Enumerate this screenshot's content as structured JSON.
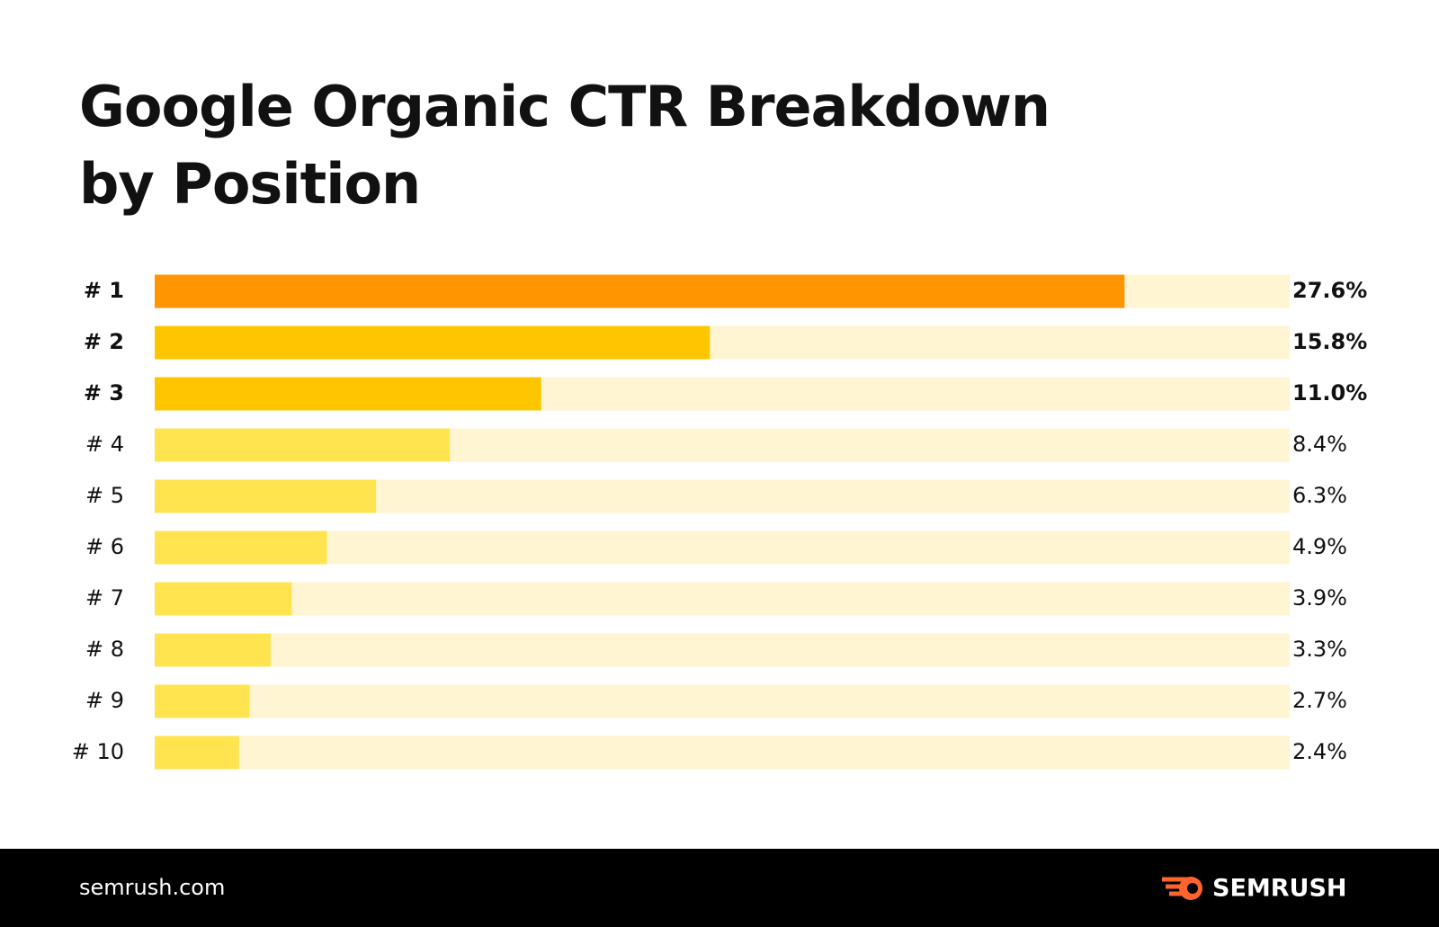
{
  "chart_data": {
    "type": "hbar",
    "title": [
      "Google Organic CTR Breakdown",
      "by Position"
    ],
    "categories": [
      "# 1",
      "# 2",
      "# 3",
      "# 4",
      "# 5",
      "# 6",
      "# 7",
      "# 8",
      "# 9",
      "# 10"
    ],
    "values": [
      27.6,
      15.8,
      11.0,
      8.4,
      6.3,
      4.9,
      3.9,
      3.3,
      2.7,
      2.4
    ],
    "value_labels": [
      "27.6%",
      "15.8%",
      "11.0%",
      "8.4%",
      "6.3%",
      "4.9%",
      "3.9%",
      "3.3%",
      "2.7%",
      "2.4%"
    ],
    "colors": [
      "#ff9500",
      "#ffc600",
      "#ffc600",
      "#ffe44f",
      "#ffe44f",
      "#ffe44f",
      "#ffe44f",
      "#ffe44f",
      "#ffe44f",
      "#ffe44f"
    ],
    "track_color": "#fff5d2",
    "xlim": [
      0,
      32.3
    ]
  },
  "footer": {
    "site": "semrush.com",
    "brand": "SEMRUSH"
  }
}
